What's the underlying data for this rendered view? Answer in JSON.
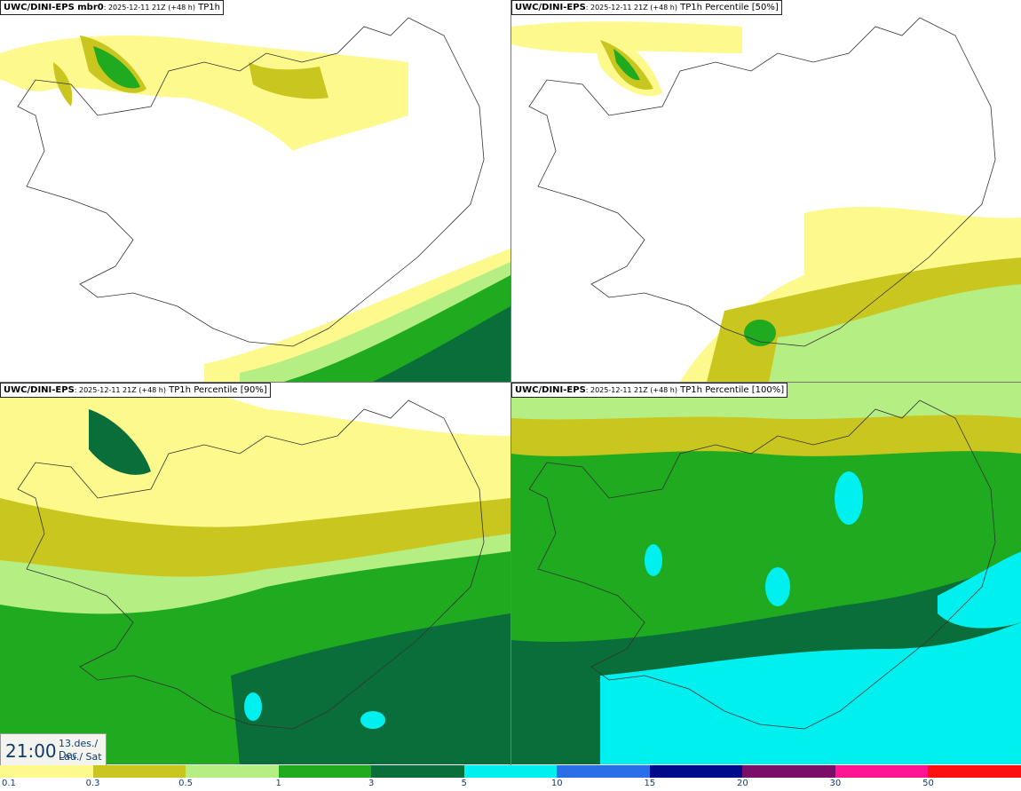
{
  "panels": [
    {
      "model": "UWC/DINI-EPS mbr0",
      "meta": ": 2025-12-11 21Z (+48 h)",
      "field": "TP1h"
    },
    {
      "model": "UWC/DINI-EPS",
      "meta": ": 2025-12-11 21Z (+48 h)",
      "field": "TP1h Percentile [50%]"
    },
    {
      "model": "UWC/DINI-EPS",
      "meta": ": 2025-12-11 21Z (+48 h)",
      "field": "TP1h Percentile [90%]"
    },
    {
      "model": "UWC/DINI-EPS",
      "meta": ": 2025-12-11 21Z (+48 h)",
      "field": "TP1h Percentile [100%]"
    }
  ],
  "time": {
    "hour": "21:00",
    "date": "13.des./ Dec",
    "day": "Lau./ Sat"
  },
  "legend": {
    "thresholds": [
      "0.1",
      "0.3",
      "0.5",
      "1",
      "3",
      "5",
      "10",
      "15",
      "20",
      "30",
      "50"
    ],
    "colors": [
      "#fdf98c",
      "#c9c61f",
      "#b5ee83",
      "#1faa1f",
      "#0a6e3a",
      "#00f0f0",
      "#2a6ee8",
      "#000a8a",
      "#7a0f6a",
      "#ff1493",
      "#ff1010"
    ]
  },
  "colors": {
    "coast": "#333333",
    "no_precip": "#ffffff"
  }
}
